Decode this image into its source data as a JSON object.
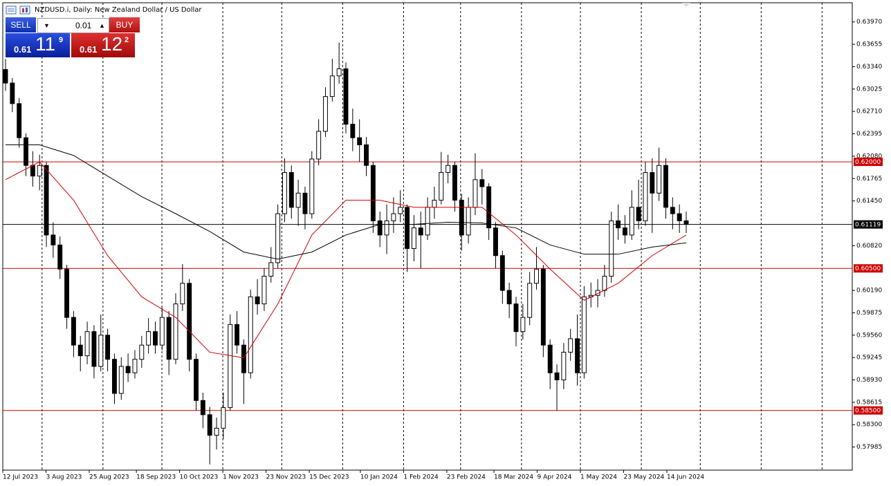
{
  "toolbar": {
    "symbol_title": "NZDUSD.i, Daily:  New Zealand Dollar / US Dollar",
    "sell_label": "SELL",
    "buy_label": "BUY",
    "lot": "0.01",
    "sell_price": {
      "prefix": "0.61",
      "big": "11",
      "sup": "9"
    },
    "buy_price": {
      "prefix": "0.61",
      "big": "12",
      "sup": "2"
    }
  },
  "chart_data": {
    "type": "candlestick",
    "ylim": [
      0.5766,
      0.6424
    ],
    "yticks": [
      {
        "value": 0.6397,
        "label": "0.63970"
      },
      {
        "value": 0.63655,
        "label": "0.63655"
      },
      {
        "value": 0.6334,
        "label": "0.63340"
      },
      {
        "value": 0.63025,
        "label": "0.63025"
      },
      {
        "value": 0.6271,
        "label": "0.62710"
      },
      {
        "value": 0.62395,
        "label": "0.62395"
      },
      {
        "value": 0.6208,
        "label": "0.62080"
      },
      {
        "value": 0.61765,
        "label": "0.61765"
      },
      {
        "value": 0.6145,
        "label": "0.61450"
      },
      {
        "value": 0.6082,
        "label": "0.60820"
      },
      {
        "value": 0.6019,
        "label": "0.60190"
      },
      {
        "value": 0.59875,
        "label": "0.59875"
      },
      {
        "value": 0.5956,
        "label": "0.59560"
      },
      {
        "value": 0.59245,
        "label": "0.59245"
      },
      {
        "value": 0.5893,
        "label": "0.58930"
      },
      {
        "value": 0.58615,
        "label": "0.58615"
      },
      {
        "value": 0.583,
        "label": "0.58300"
      },
      {
        "value": 0.57985,
        "label": "0.57985"
      }
    ],
    "x_labels": [
      "12 Jul 2023",
      "3 Aug 2023",
      "25 Aug 2023",
      "18 Sep 2023",
      "10 Oct 2023",
      "1 Nov 2023",
      "23 Nov 2023",
      "15 Dec 2023",
      "10 Jan 2024",
      "1 Feb 2024",
      "23 Feb 2024",
      "18 Mar 2024",
      "9 Apr 2024",
      "1 May 2024",
      "23 May 2024",
      "14 Jun 2024"
    ],
    "levels": [
      {
        "value": 0.62,
        "label": "0.62000",
        "color": "#cc0000"
      },
      {
        "value": 0.61119,
        "label": "0.61119",
        "color": "#000000"
      },
      {
        "value": 0.605,
        "label": "0.60500",
        "color": "#cc0000"
      },
      {
        "value": 0.585,
        "label": "0.58500",
        "color": "#cc0000"
      }
    ],
    "up_color": "#ffffff",
    "down_color": "#000000",
    "candles": [
      [
        0.633,
        0.6345,
        0.63,
        0.6311
      ],
      [
        0.6311,
        0.6318,
        0.627,
        0.6282
      ],
      [
        0.6282,
        0.629,
        0.622,
        0.6234
      ],
      [
        0.6234,
        0.624,
        0.618,
        0.6195
      ],
      [
        0.6195,
        0.6215,
        0.6165,
        0.618
      ],
      [
        0.618,
        0.621,
        0.616,
        0.6195
      ],
      [
        0.6195,
        0.62,
        0.608,
        0.6097
      ],
      [
        0.6097,
        0.6115,
        0.6065,
        0.6083
      ],
      [
        0.6083,
        0.6095,
        0.6035,
        0.6049
      ],
      [
        0.6049,
        0.6055,
        0.5965,
        0.5981
      ],
      [
        0.5981,
        0.599,
        0.5925,
        0.5942
      ],
      [
        0.5942,
        0.5955,
        0.5905,
        0.5927
      ],
      [
        0.5927,
        0.5975,
        0.5915,
        0.5961
      ],
      [
        0.5961,
        0.597,
        0.5895,
        0.5912
      ],
      [
        0.5912,
        0.5985,
        0.5905,
        0.5956
      ],
      [
        0.5956,
        0.5965,
        0.5905,
        0.5922
      ],
      [
        0.5922,
        0.593,
        0.5859,
        0.5874
      ],
      [
        0.5874,
        0.5925,
        0.5865,
        0.5912
      ],
      [
        0.5912,
        0.593,
        0.589,
        0.5903
      ],
      [
        0.5903,
        0.5935,
        0.5895,
        0.5922
      ],
      [
        0.5922,
        0.5955,
        0.591,
        0.5942
      ],
      [
        0.5942,
        0.598,
        0.593,
        0.5961
      ],
      [
        0.5961,
        0.5975,
        0.593,
        0.5942
      ],
      [
        0.5942,
        0.5995,
        0.5935,
        0.5981
      ],
      [
        0.5981,
        0.599,
        0.59,
        0.5922
      ],
      [
        0.5922,
        0.6015,
        0.5915,
        0.6
      ],
      [
        0.6,
        0.6056,
        0.599,
        0.6029
      ],
      [
        0.6029,
        0.6035,
        0.5905,
        0.5922
      ],
      [
        0.5922,
        0.593,
        0.585,
        0.5864
      ],
      [
        0.5864,
        0.5875,
        0.5825,
        0.5844
      ],
      [
        0.5844,
        0.5855,
        0.5774,
        0.5815
      ],
      [
        0.5815,
        0.584,
        0.5795,
        0.5825
      ],
      [
        0.5825,
        0.5875,
        0.581,
        0.5854
      ],
      [
        0.5854,
        0.5985,
        0.585,
        0.5971
      ],
      [
        0.5971,
        0.599,
        0.593,
        0.5942
      ],
      [
        0.5942,
        0.595,
        0.5859,
        0.5903
      ],
      [
        0.5903,
        0.602,
        0.5895,
        0.601
      ],
      [
        0.601,
        0.6035,
        0.5985,
        0.6
      ],
      [
        0.6,
        0.605,
        0.599,
        0.6039
      ],
      [
        0.6039,
        0.608,
        0.603,
        0.6058
      ],
      [
        0.6058,
        0.614,
        0.605,
        0.6127
      ],
      [
        0.6127,
        0.6205,
        0.6115,
        0.6185
      ],
      [
        0.6185,
        0.6195,
        0.612,
        0.6136
      ],
      [
        0.6136,
        0.6175,
        0.611,
        0.6156
      ],
      [
        0.6156,
        0.6165,
        0.6105,
        0.6127
      ],
      [
        0.6127,
        0.6215,
        0.612,
        0.6204
      ],
      [
        0.6204,
        0.626,
        0.6195,
        0.6243
      ],
      [
        0.6243,
        0.6305,
        0.6235,
        0.6292
      ],
      [
        0.6292,
        0.6345,
        0.6285,
        0.6321
      ],
      [
        0.6321,
        0.6368,
        0.631,
        0.6331
      ],
      [
        0.6331,
        0.634,
        0.624,
        0.6253
      ],
      [
        0.6253,
        0.6275,
        0.6215,
        0.6234
      ],
      [
        0.6234,
        0.626,
        0.62,
        0.6224
      ],
      [
        0.6224,
        0.6235,
        0.618,
        0.6195
      ],
      [
        0.6195,
        0.62,
        0.61,
        0.6117
      ],
      [
        0.6117,
        0.613,
        0.608,
        0.6097
      ],
      [
        0.6097,
        0.614,
        0.607,
        0.6117
      ],
      [
        0.6117,
        0.615,
        0.61,
        0.6127
      ],
      [
        0.6127,
        0.616,
        0.6115,
        0.6136
      ],
      [
        0.6136,
        0.614,
        0.6045,
        0.6078
      ],
      [
        0.6078,
        0.6125,
        0.606,
        0.6107
      ],
      [
        0.6107,
        0.613,
        0.605,
        0.6097
      ],
      [
        0.6097,
        0.615,
        0.609,
        0.6136
      ],
      [
        0.6136,
        0.6165,
        0.612,
        0.6146
      ],
      [
        0.6146,
        0.6214,
        0.614,
        0.6185
      ],
      [
        0.6185,
        0.621,
        0.617,
        0.6195
      ],
      [
        0.6195,
        0.62,
        0.613,
        0.6146
      ],
      [
        0.6146,
        0.6155,
        0.6075,
        0.6097
      ],
      [
        0.6097,
        0.615,
        0.6085,
        0.6136
      ],
      [
        0.6136,
        0.6212,
        0.6125,
        0.6175
      ],
      [
        0.6175,
        0.619,
        0.614,
        0.6165
      ],
      [
        0.6165,
        0.617,
        0.609,
        0.6107
      ],
      [
        0.6107,
        0.6115,
        0.605,
        0.6068
      ],
      [
        0.6068,
        0.6075,
        0.6,
        0.6019
      ],
      [
        0.6019,
        0.603,
        0.598,
        0.6
      ],
      [
        0.6,
        0.601,
        0.594,
        0.5961
      ],
      [
        0.5961,
        0.6,
        0.595,
        0.5981
      ],
      [
        0.5981,
        0.6045,
        0.597,
        0.6029
      ],
      [
        0.6029,
        0.608,
        0.602,
        0.6049
      ],
      [
        0.6049,
        0.6055,
        0.5925,
        0.5942
      ],
      [
        0.5942,
        0.595,
        0.588,
        0.5903
      ],
      [
        0.5903,
        0.5915,
        0.585,
        0.5893
      ],
      [
        0.5893,
        0.5945,
        0.588,
        0.5932
      ],
      [
        0.5932,
        0.5965,
        0.592,
        0.5951
      ],
      [
        0.5951,
        0.5985,
        0.5885,
        0.5903
      ],
      [
        0.5903,
        0.6025,
        0.5895,
        0.601
      ],
      [
        0.601,
        0.603,
        0.5995,
        0.6012
      ],
      [
        0.6012,
        0.6035,
        0.5995,
        0.6019
      ],
      [
        0.6019,
        0.6055,
        0.601,
        0.6039
      ],
      [
        0.6039,
        0.613,
        0.603,
        0.6117
      ],
      [
        0.6117,
        0.614,
        0.609,
        0.6107
      ],
      [
        0.6107,
        0.6125,
        0.6085,
        0.6097
      ],
      [
        0.6097,
        0.616,
        0.609,
        0.6136
      ],
      [
        0.6136,
        0.6175,
        0.6105,
        0.6117
      ],
      [
        0.6117,
        0.62,
        0.611,
        0.6185
      ],
      [
        0.6185,
        0.6205,
        0.61,
        0.6156
      ],
      [
        0.6156,
        0.622,
        0.6145,
        0.6195
      ],
      [
        0.6195,
        0.6205,
        0.612,
        0.6136
      ],
      [
        0.6136,
        0.615,
        0.6105,
        0.6127
      ],
      [
        0.6127,
        0.614,
        0.61,
        0.6117
      ],
      [
        0.6117,
        0.613,
        0.61,
        0.6112
      ]
    ],
    "moving_averages": [
      {
        "color": "#cc0000",
        "values": [
          0.6175,
          0.62,
          0.6146,
          0.6068,
          0.601,
          0.5981,
          0.5932,
          0.5924,
          0.6,
          0.6097,
          0.6146,
          0.6146,
          0.6136,
          0.6136,
          0.6136,
          0.6097,
          0.6049,
          0.6005,
          0.6029,
          0.6068,
          0.6097
        ]
      },
      {
        "color": "#000000",
        "values": [
          0.6224,
          0.6224,
          0.6209,
          0.618,
          0.6151,
          0.6127,
          0.6102,
          0.6073,
          0.6063,
          0.6073,
          0.6097,
          0.6112,
          0.6112,
          0.6115,
          0.6114,
          0.6107,
          0.6083,
          0.607,
          0.607,
          0.608,
          0.6086
        ]
      }
    ]
  }
}
